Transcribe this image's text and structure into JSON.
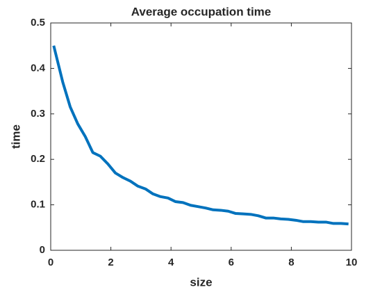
{
  "chart_data": {
    "type": "line",
    "title": "Average occupation time",
    "x_label": "size",
    "y_label": "time",
    "x": [
      0.1,
      0.4,
      0.65,
      0.9,
      1.15,
      1.4,
      1.65,
      1.9,
      2.15,
      2.4,
      2.65,
      2.9,
      3.15,
      3.4,
      3.65,
      3.9,
      4.15,
      4.4,
      4.65,
      4.9,
      5.15,
      5.4,
      5.65,
      5.9,
      6.15,
      6.4,
      6.65,
      6.9,
      7.15,
      7.4,
      7.65,
      7.9,
      8.15,
      8.4,
      8.65,
      8.9,
      9.15,
      9.4,
      9.65,
      9.9
    ],
    "series": [
      {
        "name": "time",
        "color": "#0072bd",
        "values": [
          0.45,
          0.37,
          0.315,
          0.278,
          0.25,
          0.215,
          0.207,
          0.19,
          0.17,
          0.16,
          0.152,
          0.141,
          0.135,
          0.124,
          0.118,
          0.115,
          0.107,
          0.105,
          0.099,
          0.096,
          0.093,
          0.089,
          0.088,
          0.086,
          0.081,
          0.08,
          0.079,
          0.076,
          0.071,
          0.071,
          0.069,
          0.068,
          0.066,
          0.063,
          0.063,
          0.062,
          0.062,
          0.059,
          0.059,
          0.058
        ]
      }
    ],
    "xlim": [
      0,
      10
    ],
    "ylim": [
      0,
      0.5
    ],
    "xticks": [
      0,
      2,
      4,
      6,
      8,
      10
    ],
    "yticks": [
      0,
      0.1,
      0.2,
      0.3,
      0.4,
      0.5
    ],
    "grid": false
  }
}
